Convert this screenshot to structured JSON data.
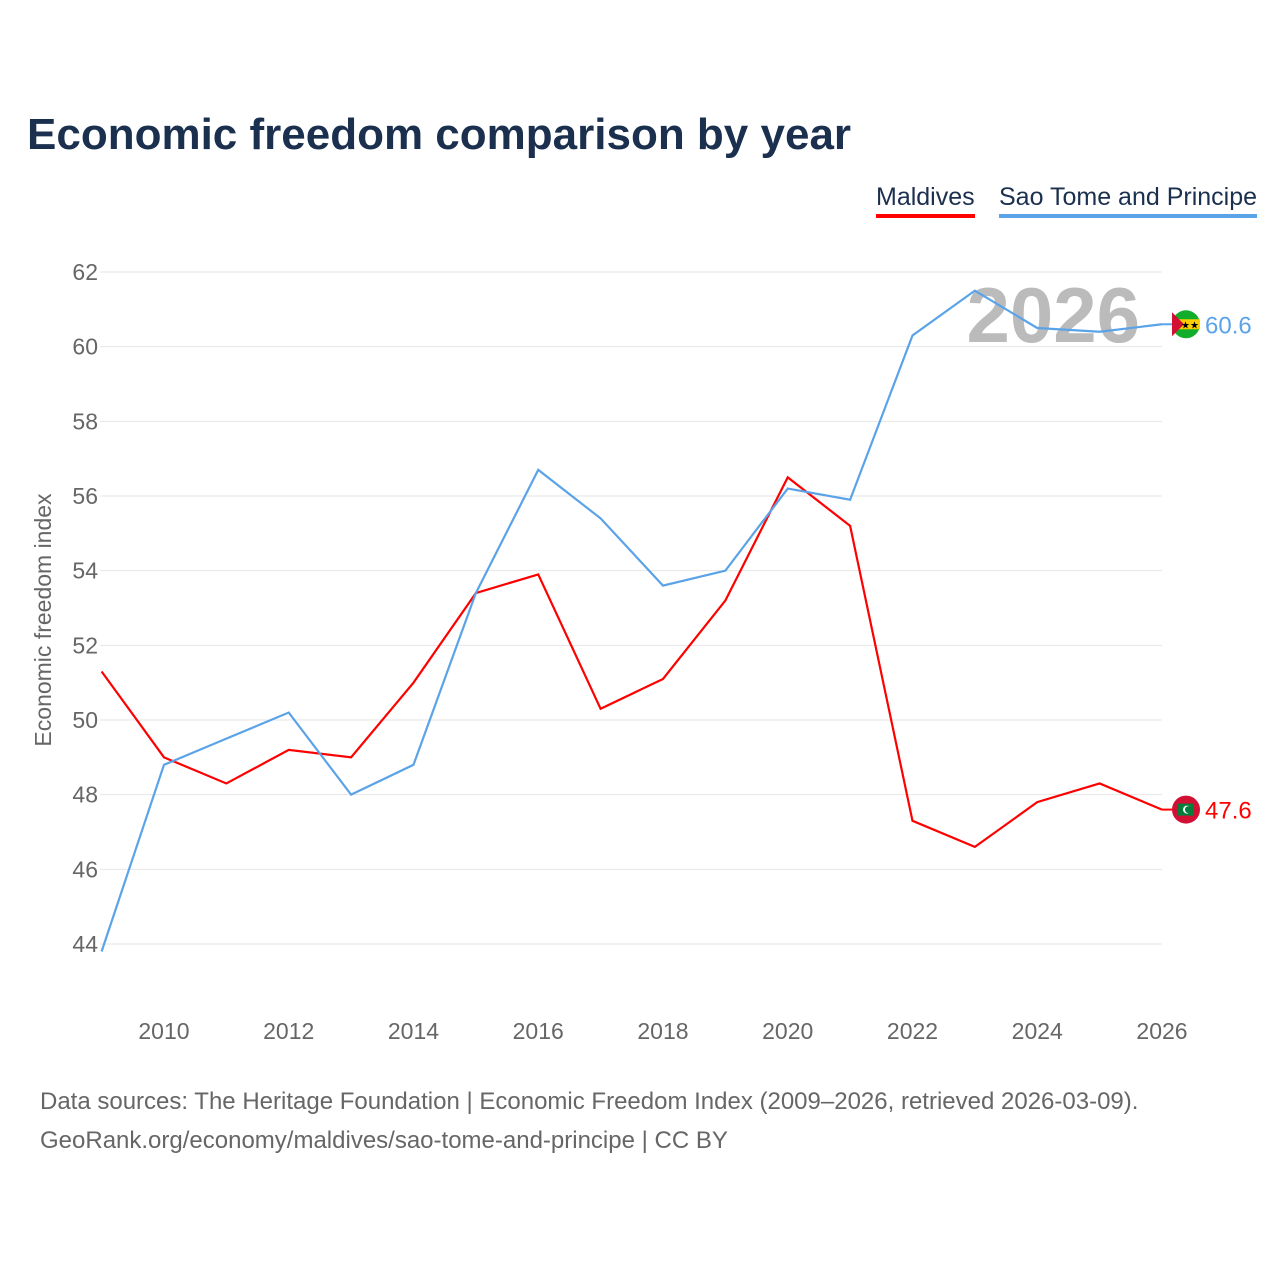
{
  "title": "Economic freedom comparison by year",
  "watermark_year": "2026",
  "footer": {
    "line1": "Data sources: The Heritage Foundation | Economic Freedom Index (2009–2026, retrieved 2026-03-09).",
    "line2": "GeoRank.org/economy/maldives/sao-tome-and-principe | CC BY"
  },
  "chart_data": {
    "type": "line",
    "title": "Economic freedom comparison by year",
    "xlabel": "",
    "ylabel": "Economic freedom index",
    "x": [
      2009,
      2010,
      2011,
      2012,
      2013,
      2014,
      2015,
      2016,
      2017,
      2018,
      2019,
      2020,
      2021,
      2022,
      2023,
      2024,
      2025,
      2026
    ],
    "xticks": [
      2010,
      2012,
      2014,
      2016,
      2018,
      2020,
      2022,
      2024,
      2026
    ],
    "yticks": [
      44,
      46,
      48,
      50,
      52,
      54,
      56,
      58,
      60,
      62
    ],
    "ylim": [
      44,
      62
    ],
    "xlim": [
      2009,
      2026
    ],
    "grid": true,
    "legend_placement": "top-right",
    "series": [
      {
        "name": "Maldives",
        "color": "#ff0000",
        "end_label": "47.6",
        "values": [
          51.3,
          49.0,
          48.3,
          49.2,
          49.0,
          51.0,
          53.4,
          53.9,
          50.3,
          51.1,
          53.2,
          56.5,
          55.2,
          47.3,
          46.6,
          47.8,
          48.3,
          47.6
        ]
      },
      {
        "name": "Sao Tome and Principe",
        "color": "#5ba3e8",
        "end_label": "60.6",
        "values": [
          43.8,
          48.8,
          49.5,
          50.2,
          48.0,
          48.8,
          53.4,
          56.7,
          55.4,
          53.6,
          54.0,
          56.2,
          55.9,
          60.3,
          61.5,
          60.5,
          60.4,
          60.6
        ]
      }
    ]
  }
}
